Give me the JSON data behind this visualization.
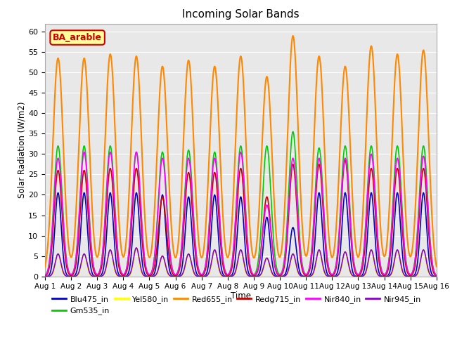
{
  "title": "Incoming Solar Bands",
  "xlabel": "Time",
  "ylabel": "Solar Radiation (W/m2)",
  "annotation": "BA_arable",
  "annotation_bg": "#ffff99",
  "annotation_border": "#cc0000",
  "annotation_text_color": "#cc0000",
  "ylim": [
    0,
    62
  ],
  "yticks": [
    0,
    5,
    10,
    15,
    20,
    25,
    30,
    35,
    40,
    45,
    50,
    55,
    60
  ],
  "num_days": 15,
  "series": [
    {
      "name": "Blu475_in",
      "color": "#0000cc"
    },
    {
      "name": "Gm535_in",
      "color": "#00cc00"
    },
    {
      "name": "Yel580_in",
      "color": "#ffff00"
    },
    {
      "name": "Red655_in",
      "color": "#ff8800"
    },
    {
      "name": "Redg715_in",
      "color": "#cc0000"
    },
    {
      "name": "Nir840_in",
      "color": "#ff00ff"
    },
    {
      "name": "Nir945_in",
      "color": "#8800cc"
    }
  ],
  "bg_color": "#e8e8e8",
  "grid_color": "#ffffff",
  "fig_bg": "#ffffff",
  "all_peaks": [
    [
      20.5,
      20.5,
      20.5,
      20.5,
      20.0,
      19.5,
      20.0,
      19.5,
      14.5,
      12.0,
      20.5,
      20.5,
      20.5,
      20.5,
      20.5
    ],
    [
      32.0,
      32.0,
      32.0,
      30.5,
      30.5,
      31.0,
      30.5,
      32.0,
      32.0,
      35.5,
      31.5,
      32.0,
      32.0,
      32.0,
      32.0
    ],
    [
      5.5,
      5.5,
      6.5,
      7.0,
      5.0,
      5.5,
      6.5,
      6.5,
      4.5,
      5.5,
      6.5,
      6.0,
      6.5,
      6.5,
      6.5
    ],
    [
      53.5,
      53.5,
      54.5,
      54.0,
      51.5,
      53.0,
      51.5,
      54.0,
      49.0,
      59.0,
      54.0,
      51.5,
      56.5,
      54.5,
      55.5
    ],
    [
      26.0,
      26.0,
      26.5,
      26.5,
      19.5,
      25.5,
      25.5,
      26.5,
      19.5,
      27.5,
      27.5,
      28.5,
      26.5,
      26.5,
      26.5
    ],
    [
      29.0,
      30.5,
      30.5,
      30.5,
      29.0,
      29.0,
      29.0,
      30.5,
      17.5,
      29.0,
      29.0,
      29.0,
      30.0,
      29.0,
      29.5
    ],
    [
      5.5,
      5.5,
      6.5,
      7.0,
      5.0,
      5.5,
      6.5,
      6.5,
      4.5,
      5.5,
      6.5,
      6.0,
      6.5,
      6.5,
      6.5
    ]
  ],
  "widths": [
    0.12,
    0.16,
    0.1,
    0.2,
    0.15,
    0.16,
    0.11
  ],
  "linewidths": [
    1.2,
    1.2,
    1.2,
    1.5,
    1.2,
    1.2,
    1.2
  ]
}
